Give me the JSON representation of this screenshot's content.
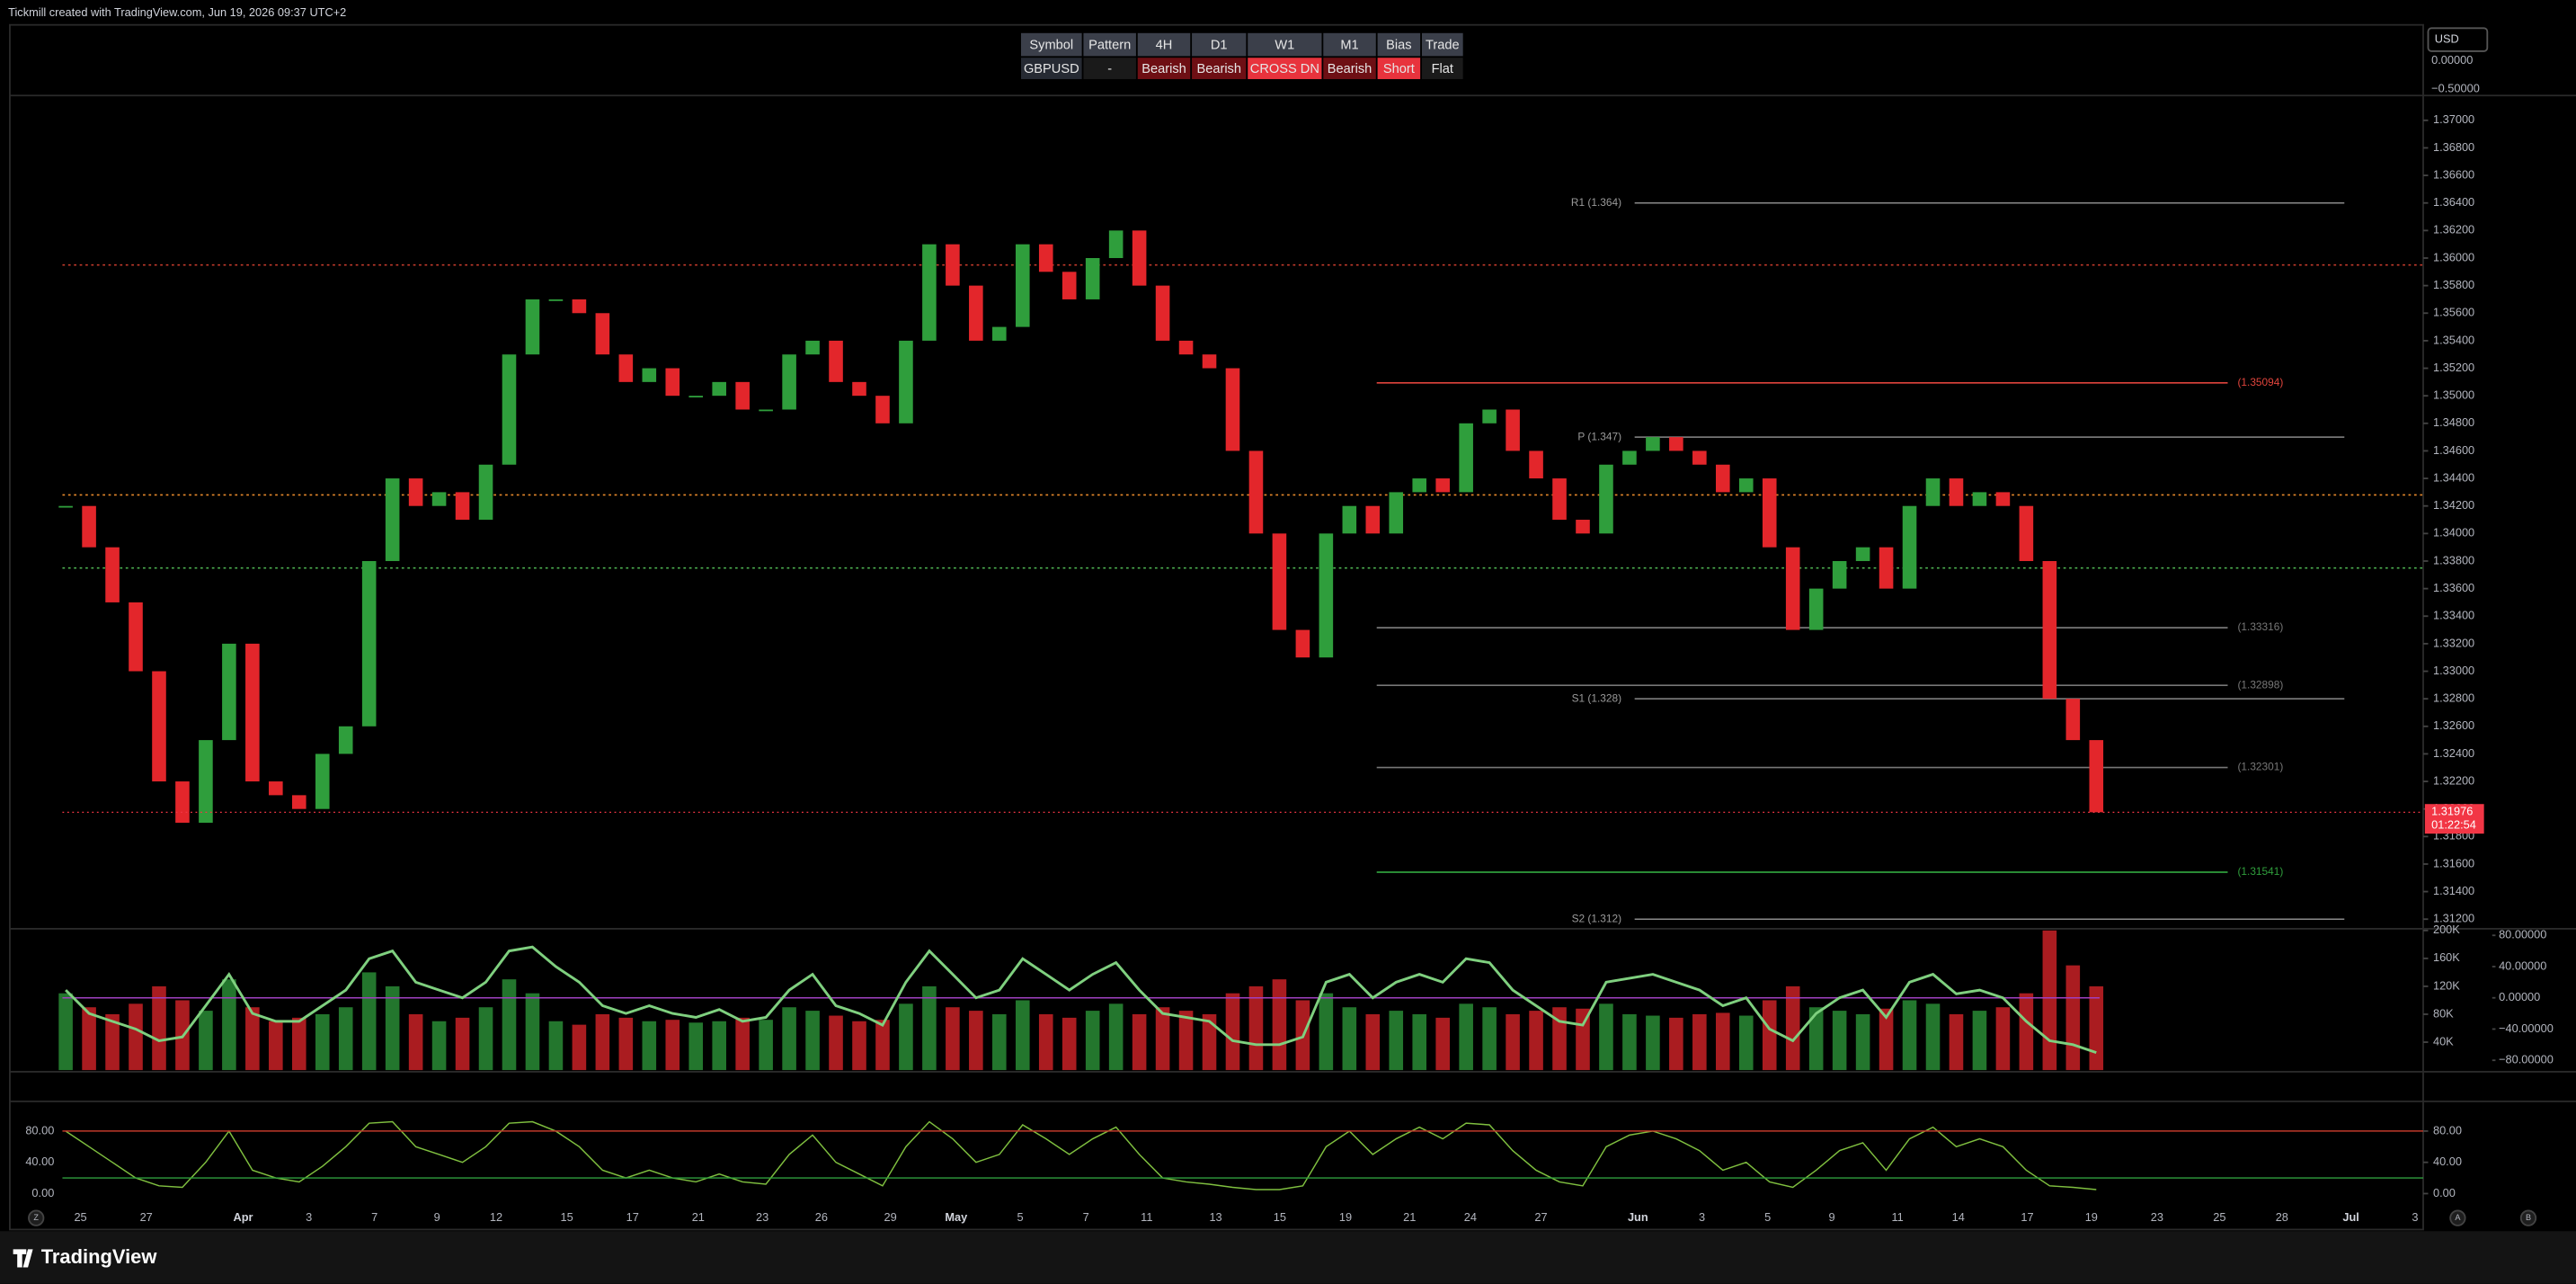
{
  "header": {
    "attribution": "Tickmill created with TradingView.com, Jun 19, 2026 09:37 UTC+2",
    "logo": "TradingView"
  },
  "table": {
    "headers": [
      "Symbol",
      "Pattern",
      "4H",
      "D1",
      "W1",
      "M1",
      "Bias",
      "Trade"
    ],
    "rows": [
      [
        "GBPUSD",
        "-",
        "Bearish",
        "Bearish",
        "CROSS DN",
        "Bearish",
        "Short",
        "Flat"
      ]
    ],
    "header_color": "#3b3f4a",
    "row_colors": [
      [
        "#262a33",
        "#1a1a1a",
        "#6e0f14",
        "#6e0f14",
        "#e8333d",
        "#6e0f14",
        "#e8333d",
        "#1a1a1a"
      ]
    ]
  },
  "currency": "USD",
  "scale_labels": [
    "0.00000",
    "−0.50000"
  ],
  "axis_buttons": [
    "Z",
    "A",
    "B"
  ],
  "chart_data": {
    "type": "candlestick",
    "up_color": "#2f9e3c",
    "down_color": "#e3262b",
    "closes": [
      1.342,
      1.339,
      1.335,
      1.33,
      1.322,
      1.319,
      1.325,
      1.332,
      1.322,
      1.321,
      1.32,
      1.324,
      1.326,
      1.338,
      1.344,
      1.342,
      1.343,
      1.341,
      1.345,
      1.353,
      1.357,
      1.357,
      1.356,
      1.353,
      1.351,
      1.352,
      1.35,
      1.35,
      1.351,
      1.349,
      1.349,
      1.353,
      1.354,
      1.351,
      1.35,
      1.348,
      1.354,
      1.361,
      1.358,
      1.354,
      1.355,
      1.361,
      1.359,
      1.357,
      1.36,
      1.362,
      1.358,
      1.354,
      1.353,
      1.352,
      1.346,
      1.34,
      1.333,
      1.331,
      1.34,
      1.342,
      1.34,
      1.343,
      1.344,
      1.343,
      1.348,
      1.349,
      1.346,
      1.344,
      1.341,
      1.34,
      1.345,
      1.346,
      1.347,
      1.346,
      1.345,
      1.343,
      1.344,
      1.339,
      1.333,
      1.336,
      1.338,
      1.339,
      1.336,
      1.342,
      1.344,
      1.342,
      1.343,
      1.342,
      1.338,
      1.328,
      1.325,
      1.31976
    ],
    "volumes": [
      110000,
      90000,
      80000,
      95000,
      120000,
      100000,
      85000,
      130000,
      90000,
      70000,
      75000,
      80000,
      90000,
      140000,
      120000,
      80000,
      70000,
      75000,
      90000,
      130000,
      110000,
      70000,
      65000,
      80000,
      75000,
      70000,
      72000,
      68000,
      70000,
      75000,
      72000,
      90000,
      85000,
      78000,
      70000,
      72000,
      95000,
      120000,
      90000,
      85000,
      80000,
      100000,
      80000,
      75000,
      85000,
      95000,
      80000,
      90000,
      85000,
      80000,
      110000,
      120000,
      130000,
      100000,
      110000,
      90000,
      80000,
      85000,
      80000,
      75000,
      95000,
      90000,
      80000,
      85000,
      90000,
      88000,
      95000,
      80000,
      78000,
      75000,
      80000,
      82000,
      78000,
      100000,
      120000,
      90000,
      85000,
      80000,
      88000,
      100000,
      95000,
      80000,
      85000,
      90000,
      110000,
      200000,
      150000,
      120000
    ],
    "osc": [
      10,
      -20,
      -30,
      -40,
      -55,
      -50,
      -10,
      30,
      -20,
      -30,
      -30,
      -10,
      10,
      50,
      60,
      20,
      10,
      0,
      20,
      60,
      65,
      40,
      20,
      -10,
      -20,
      -10,
      -20,
      -25,
      -15,
      -30,
      -25,
      10,
      30,
      -10,
      -20,
      -35,
      20,
      60,
      30,
      0,
      10,
      50,
      30,
      10,
      30,
      45,
      10,
      -20,
      -25,
      -30,
      -55,
      -60,
      -60,
      -50,
      20,
      30,
      0,
      20,
      30,
      20,
      50,
      45,
      10,
      -10,
      -30,
      -35,
      20,
      25,
      30,
      20,
      10,
      -10,
      0,
      -40,
      -55,
      -20,
      0,
      10,
      -25,
      20,
      30,
      5,
      10,
      0,
      -30,
      -55,
      -60,
      -70
    ],
    "stoch": [
      80,
      60,
      40,
      20,
      10,
      8,
      40,
      80,
      30,
      20,
      15,
      35,
      60,
      90,
      92,
      60,
      50,
      40,
      60,
      90,
      92,
      80,
      60,
      30,
      20,
      30,
      20,
      15,
      25,
      15,
      12,
      50,
      75,
      40,
      25,
      10,
      60,
      92,
      70,
      40,
      50,
      88,
      70,
      50,
      70,
      85,
      50,
      20,
      15,
      12,
      8,
      5,
      5,
      10,
      60,
      80,
      50,
      70,
      85,
      70,
      90,
      88,
      55,
      30,
      15,
      10,
      60,
      75,
      80,
      70,
      55,
      30,
      40,
      15,
      8,
      30,
      55,
      65,
      30,
      70,
      85,
      60,
      70,
      60,
      30,
      10,
      8,
      5
    ],
    "stoch_levels": [
      80,
      20
    ],
    "ylim": [
      1.3113,
      1.3718
    ],
    "yticks": [
      {
        "value": 1.312,
        "label": "1.31200"
      },
      {
        "value": 1.314,
        "label": "1.31400"
      },
      {
        "value": 1.316,
        "label": "1.31600"
      },
      {
        "value": 1.318,
        "label": "1.31800"
      },
      {
        "value": 1.32,
        "label": "1.32000"
      },
      {
        "value": 1.322,
        "label": "1.32200"
      },
      {
        "value": 1.324,
        "label": "1.32400"
      },
      {
        "value": 1.326,
        "label": "1.32600"
      },
      {
        "value": 1.328,
        "label": "1.32800"
      },
      {
        "value": 1.33,
        "label": "1.33000"
      },
      {
        "value": 1.332,
        "label": "1.33200"
      },
      {
        "value": 1.334,
        "label": "1.33400"
      },
      {
        "value": 1.336,
        "label": "1.33600"
      },
      {
        "value": 1.338,
        "label": "1.33800"
      },
      {
        "value": 1.34,
        "label": "1.34000"
      },
      {
        "value": 1.342,
        "label": "1.34200"
      },
      {
        "value": 1.344,
        "label": "1.34400"
      },
      {
        "value": 1.346,
        "label": "1.34600"
      },
      {
        "value": 1.348,
        "label": "1.34800"
      },
      {
        "value": 1.35,
        "label": "1.35000"
      },
      {
        "value": 1.352,
        "label": "1.35200"
      },
      {
        "value": 1.354,
        "label": "1.35400"
      },
      {
        "value": 1.356,
        "label": "1.35600"
      },
      {
        "value": 1.358,
        "label": "1.35800"
      },
      {
        "value": 1.36,
        "label": "1.36000"
      },
      {
        "value": 1.362,
        "label": "1.36200"
      },
      {
        "value": 1.364,
        "label": "1.36400"
      },
      {
        "value": 1.366,
        "label": "1.36600"
      },
      {
        "value": 1.368,
        "label": "1.36800"
      },
      {
        "value": 1.37,
        "label": "1.37000"
      }
    ],
    "pivots": [
      {
        "label": "R1 (1.364)",
        "value": 1.364
      },
      {
        "label": "P (1.347)",
        "value": 1.347
      },
      {
        "label": "S1 (1.328)",
        "value": 1.328
      },
      {
        "label": "S2 (1.312)",
        "value": 1.312
      }
    ],
    "levels": [
      {
        "label": "(1.35094)",
        "value": 1.35094,
        "color": "#e0443c"
      },
      {
        "label": "(1.33316)",
        "value": 1.33316,
        "color": "#777777"
      },
      {
        "label": "(1.32898)",
        "value": 1.32898,
        "color": "#777777"
      },
      {
        "label": "(1.32301)",
        "value": 1.32301,
        "color": "#777777"
      },
      {
        "label": "(1.31541)",
        "value": 1.31541,
        "color": "#2f9e3c"
      }
    ],
    "dotted_levels": [
      {
        "value": 1.3595,
        "color": "#c0392b"
      },
      {
        "value": 1.3428,
        "color": "#e8892b"
      },
      {
        "value": 1.3375,
        "color": "#4caf50"
      }
    ],
    "current_price": 1.31976,
    "countdown": "01:22:54",
    "price_color": "#f23645",
    "vlim": [
      -2400,
      202400
    ],
    "vticks": [
      {
        "value": 40000,
        "label": "40K"
      },
      {
        "value": 80000,
        "label": "80K"
      },
      {
        "value": 120000,
        "label": "120K"
      },
      {
        "value": 160000,
        "label": "160K"
      },
      {
        "value": 200000,
        "label": "200K"
      }
    ],
    "osclim": [
      -94.7,
      88.4
    ],
    "oscticks": [
      {
        "value": 80,
        "label": "80.00000"
      },
      {
        "value": 40,
        "label": "40.00000"
      },
      {
        "value": 0,
        "label": "0.00000"
      },
      {
        "value": -40,
        "label": "−40.00000"
      },
      {
        "value": -80,
        "label": "−80.00000"
      }
    ],
    "stochlim": [
      -46,
      118
    ],
    "stochticks": [
      {
        "value": 80,
        "label": "80.00"
      },
      {
        "value": 40,
        "label": "40.00"
      },
      {
        "value": 0,
        "label": "0.00"
      }
    ],
    "dates": [
      "25",
      "27",
      "Apr",
      "3",
      "7",
      "9",
      "12",
      "15",
      "17",
      "21",
      "23",
      "26",
      "29",
      "May",
      "5",
      "7",
      "11",
      "13",
      "15",
      "19",
      "21",
      "24",
      "27",
      "Jun",
      "3",
      "5",
      "9",
      "11",
      "14",
      "17",
      "19",
      "23",
      "25",
      "28",
      "Jul",
      "3"
    ]
  }
}
